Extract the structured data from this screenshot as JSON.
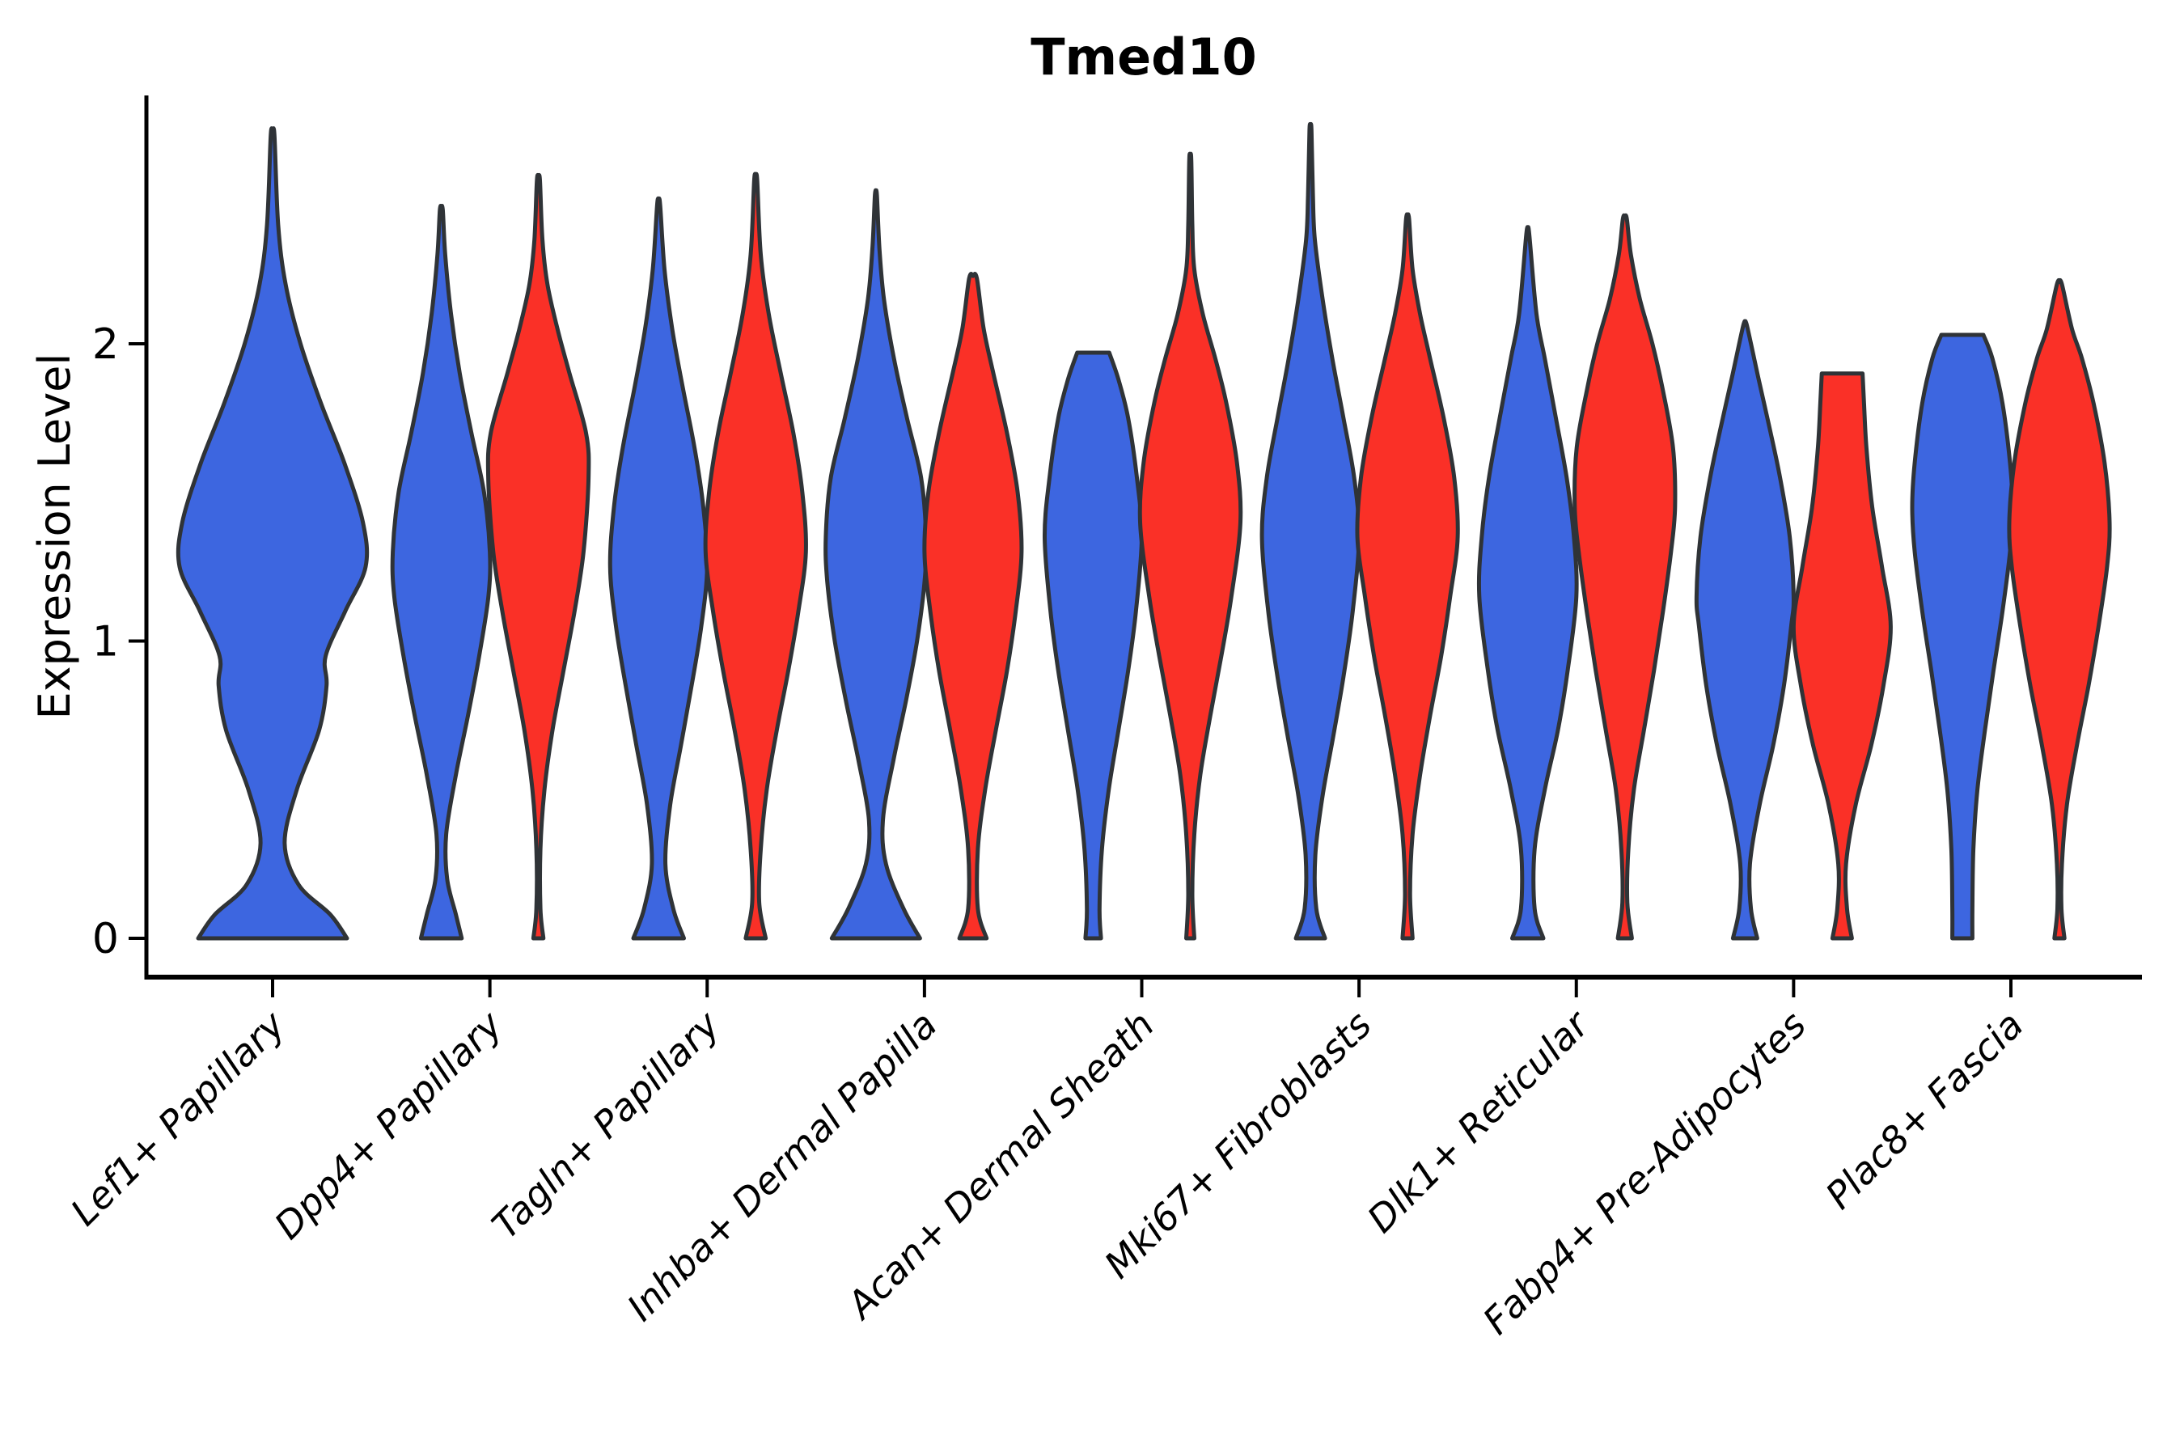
{
  "title": "Tmed10",
  "y_axis": {
    "label": "Expression Level",
    "tick_labels": [
      "0",
      "1",
      "2"
    ]
  },
  "colors": {
    "violin_blue": "#3D66E0",
    "violin_red": "#FA3027",
    "outline": "#2F3337",
    "axis": "#000000",
    "background": "#FFFFFF"
  },
  "chart_data": {
    "type": "violin",
    "title": "Tmed10",
    "xlabel": "",
    "ylabel": "Expression Level",
    "ylim": [
      0,
      2.85
    ],
    "yticks": [
      0,
      1,
      2
    ],
    "grid": false,
    "legend": "none",
    "categories": [
      "Lef1+ Papillary",
      "Dpp4+ Papillary",
      "Tagln+ Papillary",
      "Inhba+ Dermal Papilla",
      "Acan+ Dermal Sheath",
      "Mki67+ Fibroblasts",
      "Dlk1+ Reticular",
      "Fabp4+ Pre-Adipocytes",
      "Plac8+ Fascia"
    ],
    "series": [
      {
        "name": "blue",
        "color": "#3D66E0"
      },
      {
        "name": "red",
        "color": "#FA3027"
      }
    ],
    "note": "First category shows a single blue violin; all others show a blue/red pair. Profiles are [expression_value, relative_half_width] pairs from the flat base at 0 up to the tip.",
    "violins": [
      {
        "cat": 0,
        "color": "blue",
        "dx": 0,
        "hw": 115,
        "top": "apex",
        "tip": 2.7,
        "profile": [
          [
            0,
            0.8
          ],
          [
            0.08,
            0.62
          ],
          [
            0.18,
            0.28
          ],
          [
            0.32,
            0.13
          ],
          [
            0.5,
            0.26
          ],
          [
            0.7,
            0.5
          ],
          [
            0.85,
            0.58
          ],
          [
            0.95,
            0.57
          ],
          [
            1.1,
            0.78
          ],
          [
            1.25,
            1.0
          ],
          [
            1.4,
            0.97
          ],
          [
            1.6,
            0.77
          ],
          [
            1.8,
            0.52
          ],
          [
            2.0,
            0.3
          ],
          [
            2.2,
            0.14
          ],
          [
            2.4,
            0.06
          ],
          [
            2.7,
            0.02
          ]
        ]
      },
      {
        "cat": 1,
        "color": "blue",
        "dx": -60,
        "hw": 60,
        "top": "apex",
        "tip": 2.45,
        "profile": [
          [
            0,
            0.42
          ],
          [
            0.08,
            0.3
          ],
          [
            0.2,
            0.12
          ],
          [
            0.35,
            0.1
          ],
          [
            0.55,
            0.3
          ],
          [
            0.75,
            0.55
          ],
          [
            0.95,
            0.78
          ],
          [
            1.15,
            0.97
          ],
          [
            1.3,
            1.0
          ],
          [
            1.5,
            0.88
          ],
          [
            1.7,
            0.62
          ],
          [
            1.9,
            0.38
          ],
          [
            2.1,
            0.2
          ],
          [
            2.3,
            0.08
          ],
          [
            2.45,
            0.03
          ]
        ]
      },
      {
        "cat": 1,
        "color": "red",
        "dx": 60,
        "hw": 62,
        "top": "apex",
        "tip": 2.55,
        "profile": [
          [
            0,
            0.1
          ],
          [
            0.1,
            0.04
          ],
          [
            0.3,
            0.04
          ],
          [
            0.5,
            0.12
          ],
          [
            0.7,
            0.28
          ],
          [
            0.9,
            0.5
          ],
          [
            1.1,
            0.72
          ],
          [
            1.3,
            0.9
          ],
          [
            1.55,
            1.0
          ],
          [
            1.7,
            0.95
          ],
          [
            1.9,
            0.62
          ],
          [
            2.05,
            0.38
          ],
          [
            2.2,
            0.18
          ],
          [
            2.35,
            0.08
          ],
          [
            2.55,
            0.03
          ]
        ]
      },
      {
        "cat": 2,
        "color": "blue",
        "dx": -60,
        "hw": 60,
        "top": "apex",
        "tip": 2.47,
        "profile": [
          [
            0,
            0.52
          ],
          [
            0.1,
            0.3
          ],
          [
            0.25,
            0.14
          ],
          [
            0.45,
            0.24
          ],
          [
            0.65,
            0.46
          ],
          [
            0.85,
            0.68
          ],
          [
            1.05,
            0.88
          ],
          [
            1.25,
            1.0
          ],
          [
            1.45,
            0.92
          ],
          [
            1.65,
            0.74
          ],
          [
            1.85,
            0.5
          ],
          [
            2.05,
            0.28
          ],
          [
            2.25,
            0.12
          ],
          [
            2.47,
            0.03
          ]
        ]
      },
      {
        "cat": 2,
        "color": "red",
        "dx": 60,
        "hw": 62,
        "top": "apex",
        "tip": 2.55,
        "profile": [
          [
            0,
            0.2
          ],
          [
            0.12,
            0.07
          ],
          [
            0.3,
            0.1
          ],
          [
            0.5,
            0.22
          ],
          [
            0.7,
            0.42
          ],
          [
            0.9,
            0.65
          ],
          [
            1.1,
            0.85
          ],
          [
            1.3,
            1.0
          ],
          [
            1.5,
            0.93
          ],
          [
            1.7,
            0.75
          ],
          [
            1.9,
            0.5
          ],
          [
            2.1,
            0.26
          ],
          [
            2.3,
            0.1
          ],
          [
            2.55,
            0.03
          ]
        ]
      },
      {
        "cat": 3,
        "color": "blue",
        "dx": -60,
        "hw": 62,
        "top": "apex",
        "tip": 2.5,
        "profile": [
          [
            0,
            0.88
          ],
          [
            0.1,
            0.55
          ],
          [
            0.25,
            0.2
          ],
          [
            0.4,
            0.14
          ],
          [
            0.6,
            0.35
          ],
          [
            0.8,
            0.6
          ],
          [
            1.0,
            0.82
          ],
          [
            1.2,
            0.97
          ],
          [
            1.35,
            1.0
          ],
          [
            1.55,
            0.9
          ],
          [
            1.75,
            0.62
          ],
          [
            1.95,
            0.36
          ],
          [
            2.15,
            0.16
          ],
          [
            2.32,
            0.07
          ],
          [
            2.5,
            0.02
          ]
        ]
      },
      {
        "cat": 3,
        "color": "red",
        "dx": 60,
        "hw": 60,
        "top": "apex",
        "tip": 2.22,
        "profile": [
          [
            0,
            0.28
          ],
          [
            0.1,
            0.1
          ],
          [
            0.3,
            0.1
          ],
          [
            0.5,
            0.25
          ],
          [
            0.7,
            0.47
          ],
          [
            0.9,
            0.7
          ],
          [
            1.1,
            0.88
          ],
          [
            1.3,
            1.0
          ],
          [
            1.5,
            0.92
          ],
          [
            1.7,
            0.7
          ],
          [
            1.9,
            0.42
          ],
          [
            2.05,
            0.22
          ],
          [
            2.22,
            0.08
          ]
        ]
      },
      {
        "cat": 4,
        "color": "blue",
        "dx": -60,
        "hw": 60,
        "top": "flat",
        "tip": 1.97,
        "profile": [
          [
            0,
            0.16
          ],
          [
            0.1,
            0.13
          ],
          [
            0.3,
            0.18
          ],
          [
            0.5,
            0.32
          ],
          [
            0.7,
            0.52
          ],
          [
            0.9,
            0.72
          ],
          [
            1.1,
            0.88
          ],
          [
            1.35,
            1.0
          ],
          [
            1.55,
            0.9
          ],
          [
            1.75,
            0.72
          ],
          [
            1.88,
            0.52
          ],
          [
            1.97,
            0.33
          ]
        ]
      },
      {
        "cat": 4,
        "color": "red",
        "dx": 60,
        "hw": 62,
        "top": "apex",
        "tip": 2.62,
        "profile": [
          [
            0,
            0.08
          ],
          [
            0.15,
            0.04
          ],
          [
            0.35,
            0.08
          ],
          [
            0.55,
            0.2
          ],
          [
            0.75,
            0.4
          ],
          [
            0.95,
            0.62
          ],
          [
            1.15,
            0.82
          ],
          [
            1.4,
            1.0
          ],
          [
            1.6,
            0.93
          ],
          [
            1.8,
            0.72
          ],
          [
            1.95,
            0.5
          ],
          [
            2.1,
            0.25
          ],
          [
            2.25,
            0.08
          ],
          [
            2.4,
            0.04
          ],
          [
            2.62,
            0.02
          ]
        ]
      },
      {
        "cat": 5,
        "color": "blue",
        "dx": -60,
        "hw": 60,
        "top": "apex",
        "tip": 2.72,
        "profile": [
          [
            0,
            0.3
          ],
          [
            0.1,
            0.12
          ],
          [
            0.28,
            0.1
          ],
          [
            0.48,
            0.25
          ],
          [
            0.68,
            0.47
          ],
          [
            0.88,
            0.68
          ],
          [
            1.1,
            0.87
          ],
          [
            1.35,
            1.0
          ],
          [
            1.55,
            0.9
          ],
          [
            1.75,
            0.68
          ],
          [
            1.95,
            0.45
          ],
          [
            2.15,
            0.25
          ],
          [
            2.35,
            0.09
          ],
          [
            2.5,
            0.05
          ],
          [
            2.72,
            0.02
          ]
        ]
      },
      {
        "cat": 5,
        "color": "red",
        "dx": 60,
        "hw": 62,
        "top": "apex",
        "tip": 2.42,
        "profile": [
          [
            0,
            0.1
          ],
          [
            0.15,
            0.05
          ],
          [
            0.35,
            0.1
          ],
          [
            0.55,
            0.25
          ],
          [
            0.75,
            0.45
          ],
          [
            0.95,
            0.67
          ],
          [
            1.15,
            0.85
          ],
          [
            1.35,
            1.0
          ],
          [
            1.55,
            0.93
          ],
          [
            1.75,
            0.72
          ],
          [
            1.95,
            0.45
          ],
          [
            2.1,
            0.25
          ],
          [
            2.25,
            0.1
          ],
          [
            2.42,
            0.03
          ]
        ]
      },
      {
        "cat": 6,
        "color": "blue",
        "dx": -60,
        "hw": 60,
        "top": "apex",
        "tip": 2.37,
        "profile": [
          [
            0,
            0.32
          ],
          [
            0.1,
            0.14
          ],
          [
            0.3,
            0.14
          ],
          [
            0.5,
            0.35
          ],
          [
            0.7,
            0.62
          ],
          [
            0.9,
            0.82
          ],
          [
            1.15,
            1.0
          ],
          [
            1.35,
            0.95
          ],
          [
            1.55,
            0.8
          ],
          [
            1.75,
            0.58
          ],
          [
            1.95,
            0.35
          ],
          [
            2.1,
            0.18
          ],
          [
            2.37,
            0.03
          ]
        ]
      },
      {
        "cat": 6,
        "color": "red",
        "dx": 60,
        "hw": 62,
        "top": "apex",
        "tip": 2.42,
        "profile": [
          [
            0,
            0.14
          ],
          [
            0.12,
            0.05
          ],
          [
            0.3,
            0.07
          ],
          [
            0.5,
            0.18
          ],
          [
            0.7,
            0.38
          ],
          [
            0.9,
            0.58
          ],
          [
            1.1,
            0.76
          ],
          [
            1.3,
            0.92
          ],
          [
            1.45,
            1.0
          ],
          [
            1.65,
            0.96
          ],
          [
            1.85,
            0.75
          ],
          [
            2.0,
            0.55
          ],
          [
            2.15,
            0.3
          ],
          [
            2.3,
            0.12
          ],
          [
            2.42,
            0.04
          ]
        ]
      },
      {
        "cat": 7,
        "color": "blue",
        "dx": -60,
        "hw": 60,
        "top": "apex",
        "tip": 2.06,
        "profile": [
          [
            0,
            0.25
          ],
          [
            0.1,
            0.12
          ],
          [
            0.25,
            0.1
          ],
          [
            0.45,
            0.3
          ],
          [
            0.65,
            0.58
          ],
          [
            0.85,
            0.8
          ],
          [
            1.05,
            0.95
          ],
          [
            1.15,
            1.0
          ],
          [
            1.35,
            0.92
          ],
          [
            1.55,
            0.72
          ],
          [
            1.72,
            0.5
          ],
          [
            1.88,
            0.28
          ],
          [
            2.06,
            0.04
          ]
        ]
      },
      {
        "cat": 7,
        "color": "red",
        "dx": 60,
        "hw": 60,
        "top": "flat",
        "tip": 1.9,
        "profile": [
          [
            0,
            0.2
          ],
          [
            0.1,
            0.1
          ],
          [
            0.25,
            0.08
          ],
          [
            0.45,
            0.28
          ],
          [
            0.65,
            0.6
          ],
          [
            0.85,
            0.85
          ],
          [
            1.05,
            1.0
          ],
          [
            1.25,
            0.82
          ],
          [
            1.45,
            0.62
          ],
          [
            1.65,
            0.5
          ],
          [
            1.8,
            0.45
          ],
          [
            1.9,
            0.42
          ]
        ]
      },
      {
        "cat": 8,
        "color": "blue",
        "dx": -60,
        "hw": 62,
        "top": "flat",
        "tip": 2.03,
        "profile": [
          [
            0,
            0.2
          ],
          [
            0.1,
            0.2
          ],
          [
            0.3,
            0.22
          ],
          [
            0.5,
            0.3
          ],
          [
            0.7,
            0.45
          ],
          [
            0.9,
            0.62
          ],
          [
            1.1,
            0.8
          ],
          [
            1.3,
            0.95
          ],
          [
            1.45,
            1.0
          ],
          [
            1.6,
            0.95
          ],
          [
            1.8,
            0.8
          ],
          [
            1.95,
            0.6
          ],
          [
            2.03,
            0.42
          ]
        ]
      },
      {
        "cat": 8,
        "color": "red",
        "dx": 60,
        "hw": 62,
        "top": "apex",
        "tip": 2.2,
        "profile": [
          [
            0,
            0.1
          ],
          [
            0.1,
            0.04
          ],
          [
            0.25,
            0.05
          ],
          [
            0.45,
            0.15
          ],
          [
            0.65,
            0.35
          ],
          [
            0.85,
            0.58
          ],
          [
            1.05,
            0.78
          ],
          [
            1.25,
            0.95
          ],
          [
            1.4,
            1.0
          ],
          [
            1.6,
            0.9
          ],
          [
            1.8,
            0.68
          ],
          [
            1.95,
            0.45
          ],
          [
            2.05,
            0.25
          ],
          [
            2.2,
            0.05
          ]
        ]
      }
    ]
  }
}
